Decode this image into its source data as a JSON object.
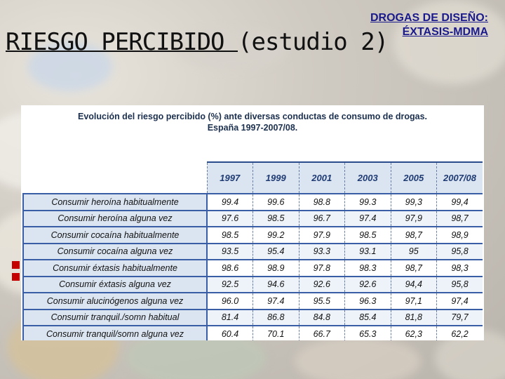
{
  "slide": {
    "title": "RIESGO PERCIBIDO ",
    "title_suffix": "(estudio 2)",
    "subtitle_line1": "DROGAS DE DISEÑO:",
    "subtitle_line2": "ÉXTASIS-MDMA"
  },
  "document": {
    "caption_line1": "Evolución del riesgo percibido (%) ante diversas conductas de consumo de drogas.",
    "caption_line2": "España 1997-2007/08.",
    "years": [
      "1997",
      "1999",
      "2001",
      "2003",
      "2005",
      "2007/08"
    ],
    "rows": [
      {
        "label": "Consumir heroína habitualmente",
        "values": [
          "99.4",
          "99.6",
          "98.8",
          "99.3",
          "99,3",
          "99,4"
        ]
      },
      {
        "label": "Consumir heroína alguna vez",
        "values": [
          "97.6",
          "98.5",
          "96.7",
          "97.4",
          "97,9",
          "98,7"
        ]
      },
      {
        "label": "Consumir cocaína habitualmente",
        "values": [
          "98.5",
          "99.2",
          "97.9",
          "98.5",
          "98,7",
          "98,9"
        ]
      },
      {
        "label": "Consumir cocaína alguna vez",
        "values": [
          "93.5",
          "95.4",
          "93.3",
          "93.1",
          "95",
          "95,8"
        ]
      },
      {
        "label": "Consumir éxtasis habitualmente",
        "values": [
          "98.6",
          "98.9",
          "97.8",
          "98.3",
          "98,7",
          "98,3"
        ]
      },
      {
        "label": "Consumir éxtasis alguna vez",
        "values": [
          "92.5",
          "94.6",
          "92.6",
          "92.6",
          "94,4",
          "95,8"
        ]
      },
      {
        "label": "Consumir alucinógenos alguna vez",
        "values": [
          "96.0",
          "97.4",
          "95.5",
          "96.3",
          "97,1",
          "97,4"
        ]
      },
      {
        "label": "Consumir tranquil./somn habitual",
        "values": [
          "81.4",
          "86.8",
          "84.8",
          "85.4",
          "81,8",
          "79,7"
        ]
      },
      {
        "label": "Consumir tranquil/somn alguna vez",
        "values": [
          "60.4",
          "70.1",
          "66.7",
          "65.3",
          "62,3",
          "62,2"
        ]
      }
    ]
  },
  "colors": {
    "subtitle": "#1a1a8c",
    "bullet": "#c40000",
    "table_border": "#3a5ea6",
    "header_fill": "#dbe5f1"
  }
}
